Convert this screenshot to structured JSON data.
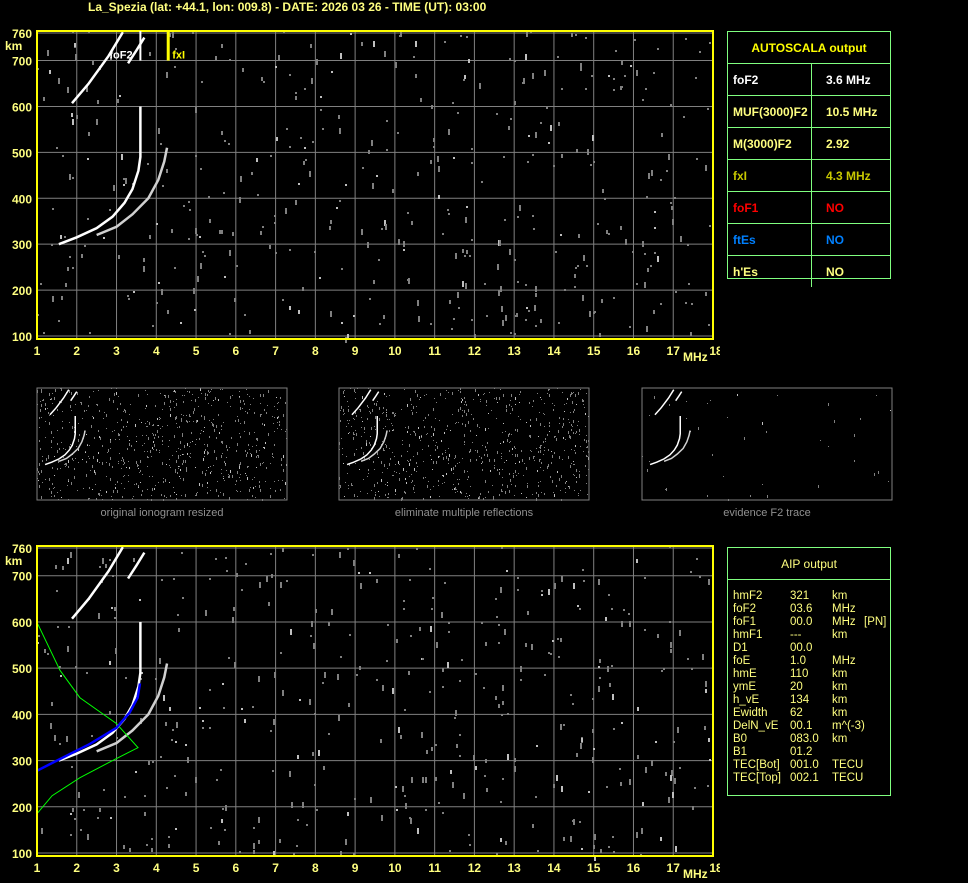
{
  "title": "La_Spezia (lat: +44.1, lon: 009.8) - DATE: 2026 03 26 - TIME (UT): 03:00",
  "colors": {
    "frame": "#ffff00",
    "axis_text": "#ffff80",
    "grid": "#808080",
    "table_border": "#80ff80",
    "foF1": "#ff0000",
    "ftEs": "#0080ff",
    "fxI": "#c8c800",
    "profile": "#00ff00",
    "fitted_trace": "#0000ff"
  },
  "autoscala": {
    "header": "AUTOSCALA output",
    "rows": [
      {
        "key": "foF2",
        "value": "3.6 MHz",
        "color": "#ffffff"
      },
      {
        "key": "MUF(3000)F2",
        "value": "10.5 MHz",
        "color": "#ffff80"
      },
      {
        "key": "M(3000)F2",
        "value": "2.92",
        "color": "#ffff80"
      },
      {
        "key": "fxI",
        "value": "4.3 MHz",
        "color": "#c8c800"
      },
      {
        "key": "foF1",
        "value": "NO",
        "color": "#ff0000"
      },
      {
        "key": "ftEs",
        "value": "NO",
        "color": "#0080ff"
      },
      {
        "key": "h'Es",
        "value": "NO",
        "color": "#ffff80"
      }
    ]
  },
  "aip": {
    "header": "AIP output",
    "rows": [
      [
        "hmF2",
        "321",
        "km"
      ],
      [
        "foF2",
        "03.6",
        "MHz"
      ],
      [
        "foF1",
        "00.0",
        "MHz",
        "[PN]"
      ],
      [
        "hmF1",
        "---",
        "km"
      ],
      [
        "D1",
        "00.0",
        ""
      ],
      [
        "foE",
        "1.0",
        "MHz"
      ],
      [
        "hmE",
        "110",
        "km"
      ],
      [
        "ymE",
        "20",
        "km"
      ],
      [
        "h_vE",
        "134",
        "km"
      ],
      [
        "Ewidth",
        "62",
        "km"
      ],
      [
        "DelN_vE",
        "00.1",
        "m^(-3)"
      ],
      [
        "B0",
        "083.0",
        "km"
      ],
      [
        "B1",
        "01.2",
        ""
      ],
      [
        "TEC[Bot]",
        "001.0",
        "TECU"
      ],
      [
        "TEC[Top]",
        "002.1",
        "TECU"
      ]
    ]
  },
  "captions": [
    "original ionogram resized",
    "eliminate multiple reflections",
    "evidence F2 trace"
  ],
  "chart_data": {
    "type": "scatter",
    "xlabel": "MHz",
    "ylabel": "km",
    "xlim": [
      1,
      18
    ],
    "ylim": [
      100,
      760
    ],
    "x_ticks": [
      "1",
      "2",
      "3",
      "4",
      "5",
      "6",
      "7",
      "8",
      "9",
      "10",
      "11",
      "12",
      "13",
      "14",
      "15",
      "16",
      "17",
      "18"
    ],
    "y_ticks": [
      "760",
      "700",
      "600",
      "500",
      "400",
      "300",
      "200",
      "100"
    ],
    "grid": true,
    "annotations": [
      {
        "text": "foF2",
        "x": 3.6
      },
      {
        "text": "fxI",
        "x": 4.3
      }
    ],
    "traces": {
      "ordinary": [
        [
          1.55,
          300
        ],
        [
          2.0,
          315
        ],
        [
          2.5,
          335
        ],
        [
          2.9,
          360
        ],
        [
          3.2,
          390
        ],
        [
          3.4,
          420
        ],
        [
          3.55,
          460
        ],
        [
          3.6,
          490
        ],
        [
          3.6,
          600
        ]
      ],
      "extraordinary": [
        [
          2.5,
          320
        ],
        [
          3.0,
          338
        ],
        [
          3.4,
          365
        ],
        [
          3.8,
          400
        ],
        [
          4.05,
          440
        ],
        [
          4.2,
          480
        ],
        [
          4.27,
          510
        ]
      ],
      "multiple_1": [
        [
          1.88,
          607
        ],
        [
          2.3,
          650
        ],
        [
          2.8,
          710
        ],
        [
          3.16,
          762
        ]
      ],
      "multiple_2": [
        [
          3.29,
          694
        ],
        [
          3.5,
          722
        ],
        [
          3.7,
          750
        ]
      ]
    },
    "profile": [
      [
        1.0,
        185
      ],
      [
        1.38,
        224
      ],
      [
        2.08,
        263
      ],
      [
        2.9,
        300
      ],
      [
        3.54,
        328
      ],
      [
        3.0,
        380
      ],
      [
        2.08,
        436
      ],
      [
        1.58,
        495
      ],
      [
        1.0,
        599
      ]
    ],
    "fitted_trace": [
      [
        1.0,
        278
      ],
      [
        1.5,
        300
      ],
      [
        2.33,
        336
      ],
      [
        3.0,
        371
      ],
      [
        3.33,
        404
      ],
      [
        3.53,
        436
      ],
      [
        3.59,
        467
      ]
    ]
  }
}
